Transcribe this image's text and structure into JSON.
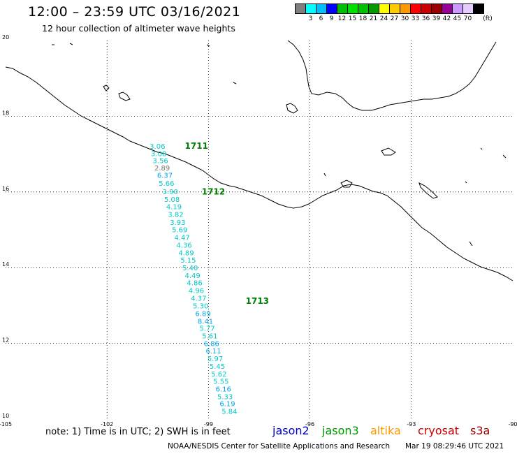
{
  "header": {
    "title": "12:00 – 23:59 UTC 03/16/2021",
    "subtitle": "12 hour collection of altimeter wave heights"
  },
  "legend": {
    "unit": "(ft)",
    "items": [
      {
        "label": "",
        "color": "#7f7f7f"
      },
      {
        "label": "3",
        "color": "#00ffff"
      },
      {
        "label": "6",
        "color": "#00bfff"
      },
      {
        "label": "9",
        "color": "#0000ff"
      },
      {
        "label": "12",
        "color": "#00bf00"
      },
      {
        "label": "15",
        "color": "#00e000"
      },
      {
        "label": "18",
        "color": "#00c000"
      },
      {
        "label": "21",
        "color": "#009900"
      },
      {
        "label": "24",
        "color": "#ffff00"
      },
      {
        "label": "27",
        "color": "#ffcc00"
      },
      {
        "label": "30",
        "color": "#ff9900"
      },
      {
        "label": "33",
        "color": "#ff0000"
      },
      {
        "label": "36",
        "color": "#cc0000"
      },
      {
        "label": "39",
        "color": "#990000"
      },
      {
        "label": "42",
        "color": "#990099"
      },
      {
        "label": "45",
        "color": "#cc99ff"
      },
      {
        "label": "70",
        "color": "#e6ccff"
      },
      {
        "label": "",
        "color": "#000000"
      }
    ]
  },
  "map": {
    "lon_range": [
      -105,
      -90
    ],
    "lat_range": [
      10,
      20
    ],
    "lon_ticks": [
      "-105",
      "-102",
      "-99",
      "-96",
      "-93",
      "-90"
    ],
    "lat_ticks": [
      "20",
      "18",
      "16",
      "14",
      "12",
      "10"
    ],
    "track_times": [
      {
        "label": "1711",
        "lon": -99.7,
        "lat": 17.14,
        "color": "#008000"
      },
      {
        "label": "1712",
        "lon": -99.2,
        "lat": 15.93,
        "color": "#008000"
      },
      {
        "label": "1713",
        "lon": -97.9,
        "lat": 13.04,
        "color": "#008000"
      }
    ],
    "observations": [
      {
        "value": "3.06",
        "lon": -100.74,
        "lat": 17.14,
        "color": "#00c8c8"
      },
      {
        "value": "3.08",
        "lon": -100.7,
        "lat": 16.95,
        "color": "#00c8c8"
      },
      {
        "value": "3.56",
        "lon": -100.65,
        "lat": 16.76,
        "color": "#00c8c8"
      },
      {
        "value": "2.89",
        "lon": -100.6,
        "lat": 16.57,
        "color": "#777777"
      },
      {
        "value": "6.37",
        "lon": -100.52,
        "lat": 16.37,
        "color": "#00a6e6"
      },
      {
        "value": "5.66",
        "lon": -100.47,
        "lat": 16.16,
        "color": "#00c8c8"
      },
      {
        "value": "3.90",
        "lon": -100.36,
        "lat": 15.94,
        "color": "#00c8c8"
      },
      {
        "value": "5.08",
        "lon": -100.31,
        "lat": 15.74,
        "color": "#00c8c8"
      },
      {
        "value": "4.19",
        "lon": -100.25,
        "lat": 15.54,
        "color": "#00c8c8"
      },
      {
        "value": "3.82",
        "lon": -100.2,
        "lat": 15.34,
        "color": "#00c8c8"
      },
      {
        "value": "3.93",
        "lon": -100.14,
        "lat": 15.13,
        "color": "#00c8c8"
      },
      {
        "value": "5.69",
        "lon": -100.08,
        "lat": 14.94,
        "color": "#00c8c8"
      },
      {
        "value": "4.47",
        "lon": -100.01,
        "lat": 14.73,
        "color": "#00c8c8"
      },
      {
        "value": "4.36",
        "lon": -99.95,
        "lat": 14.53,
        "color": "#00c8c8"
      },
      {
        "value": "4.89",
        "lon": -99.89,
        "lat": 14.33,
        "color": "#00c8c8"
      },
      {
        "value": "5.15",
        "lon": -99.83,
        "lat": 14.13,
        "color": "#00c8c8"
      },
      {
        "value": "5.40",
        "lon": -99.77,
        "lat": 13.93,
        "color": "#00c8c8"
      },
      {
        "value": "4.49",
        "lon": -99.7,
        "lat": 13.73,
        "color": "#00c8c8"
      },
      {
        "value": "4.86",
        "lon": -99.64,
        "lat": 13.53,
        "color": "#00c8c8"
      },
      {
        "value": "4.96",
        "lon": -99.59,
        "lat": 13.33,
        "color": "#00c8c8"
      },
      {
        "value": "4.37",
        "lon": -99.52,
        "lat": 13.13,
        "color": "#00c8c8"
      },
      {
        "value": "5.30",
        "lon": -99.46,
        "lat": 12.92,
        "color": "#00c8c8"
      },
      {
        "value": "6.89",
        "lon": -99.39,
        "lat": 12.72,
        "color": "#00a6e6"
      },
      {
        "value": "8.41",
        "lon": -99.32,
        "lat": 12.52,
        "color": "#00a6e6"
      },
      {
        "value": "5.77",
        "lon": -99.27,
        "lat": 12.33,
        "color": "#00c8c8"
      },
      {
        "value": "5.61",
        "lon": -99.19,
        "lat": 12.13,
        "color": "#00c8c8"
      },
      {
        "value": "6.86",
        "lon": -99.14,
        "lat": 11.93,
        "color": "#00a6e6"
      },
      {
        "value": "6.11",
        "lon": -99.08,
        "lat": 11.73,
        "color": "#00a6e6"
      },
      {
        "value": "5.97",
        "lon": -99.03,
        "lat": 11.53,
        "color": "#00c8c8"
      },
      {
        "value": "5.45",
        "lon": -98.97,
        "lat": 11.33,
        "color": "#00c8c8"
      },
      {
        "value": "5.62",
        "lon": -98.92,
        "lat": 11.13,
        "color": "#00c8c8"
      },
      {
        "value": "5.55",
        "lon": -98.86,
        "lat": 10.93,
        "color": "#00c8c8"
      },
      {
        "value": "6.16",
        "lon": -98.79,
        "lat": 10.73,
        "color": "#00a6e6"
      },
      {
        "value": "5.33",
        "lon": -98.74,
        "lat": 10.53,
        "color": "#00c8c8"
      },
      {
        "value": "6.19",
        "lon": -98.67,
        "lat": 10.34,
        "color": "#00a6e6"
      },
      {
        "value": "5.84",
        "lon": -98.61,
        "lat": 10.14,
        "color": "#00c8c8"
      }
    ]
  },
  "footer": {
    "note": "note: 1) Time is in UTC; 2) SWH is in feet",
    "satellites": [
      {
        "name": "jason2",
        "color": "#0000cc"
      },
      {
        "name": "jason3",
        "color": "#009900"
      },
      {
        "name": "altika",
        "color": "#ff9900"
      },
      {
        "name": "cryosat",
        "color": "#cc0000"
      },
      {
        "name": "s3a",
        "color": "#990000"
      }
    ],
    "credit": "NOAA/NESDIS Center for Satellite Applications and Research",
    "timestamp": "Mar 19 08:29:46 UTC 2021"
  }
}
